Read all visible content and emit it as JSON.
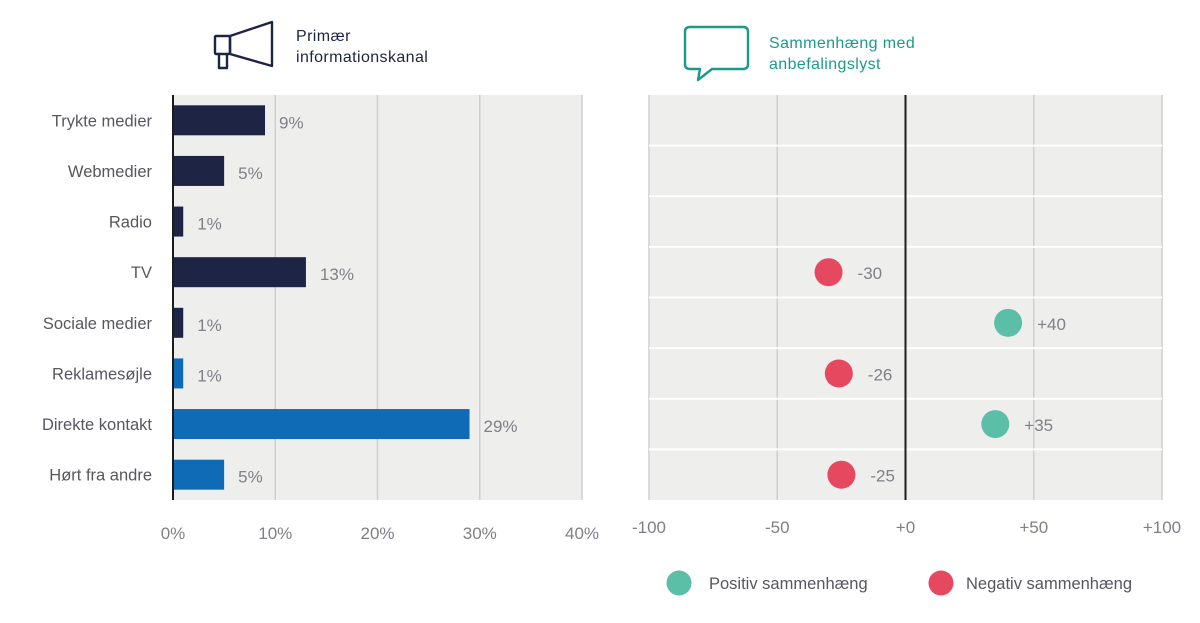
{
  "colors": {
    "panel_bg": "#eeeeed",
    "grid": "#cfcfcf",
    "row_sep": "#ffffff",
    "axis_line": "#1c1c1c",
    "navy": "#1d2444",
    "blue": "#0f6bb5",
    "positive": "#5bbfa8",
    "negative": "#e5485f",
    "label_gray": "#7f8088",
    "category_gray": "#56575f",
    "title_dark": "#1d2444",
    "title_teal": "#1b9a8c"
  },
  "left_panel": {
    "icon": "megaphone-icon",
    "title_line1": "Primær",
    "title_line2": "informationskanal"
  },
  "right_panel": {
    "icon": "speech-bubble-icon",
    "title_line1": "Sammenhæng med",
    "title_line2": "anbefalingslyst"
  },
  "chart_data": [
    {
      "type": "bar",
      "orientation": "horizontal",
      "categories": [
        "Trykte medier",
        "Webmedier",
        "Radio",
        "TV",
        "Sociale medier",
        "Reklamesøjle",
        "Direkte kontakt",
        "Hørt fra andre"
      ],
      "values": [
        9,
        5,
        1,
        13,
        1,
        1,
        29,
        5
      ],
      "value_labels": [
        "9%",
        "5%",
        "1%",
        "13%",
        "1%",
        "1%",
        "29%",
        "5%"
      ],
      "bar_colors": [
        "#1d2444",
        "#1d2444",
        "#1d2444",
        "#1d2444",
        "#1d2444",
        "#0f6bb5",
        "#0f6bb5",
        "#0f6bb5"
      ],
      "xlim": [
        0,
        40
      ],
      "xticks": [
        0,
        10,
        20,
        30,
        40
      ],
      "xtick_labels": [
        "0%",
        "10%",
        "20%",
        "30%",
        "40%"
      ],
      "grid": true
    },
    {
      "type": "scatter",
      "categories": [
        "Trykte medier",
        "Webmedier",
        "Radio",
        "TV",
        "Sociale medier",
        "Reklamesøjle",
        "Direkte kontakt",
        "Hørt fra andre"
      ],
      "points": [
        {
          "row": 3,
          "value": -30,
          "label": "-30",
          "sign": "negative"
        },
        {
          "row": 4,
          "value": 40,
          "label": "+40",
          "sign": "positive"
        },
        {
          "row": 5,
          "value": -26,
          "label": "-26",
          "sign": "negative"
        },
        {
          "row": 6,
          "value": 35,
          "label": "+35",
          "sign": "positive"
        },
        {
          "row": 7,
          "value": -25,
          "label": "-25",
          "sign": "negative"
        }
      ],
      "xlim": [
        -100,
        100
      ],
      "xticks": [
        -100,
        -50,
        0,
        50,
        100
      ],
      "xtick_labels": [
        "-100",
        "-50",
        "+0",
        "+50",
        "+100"
      ],
      "grid": true,
      "legend": {
        "placement": "bottom-right",
        "items": [
          {
            "label": "Positiv sammenhæng",
            "sign": "positive"
          },
          {
            "label": "Negativ sammenhæng",
            "sign": "negative"
          }
        ]
      }
    }
  ]
}
